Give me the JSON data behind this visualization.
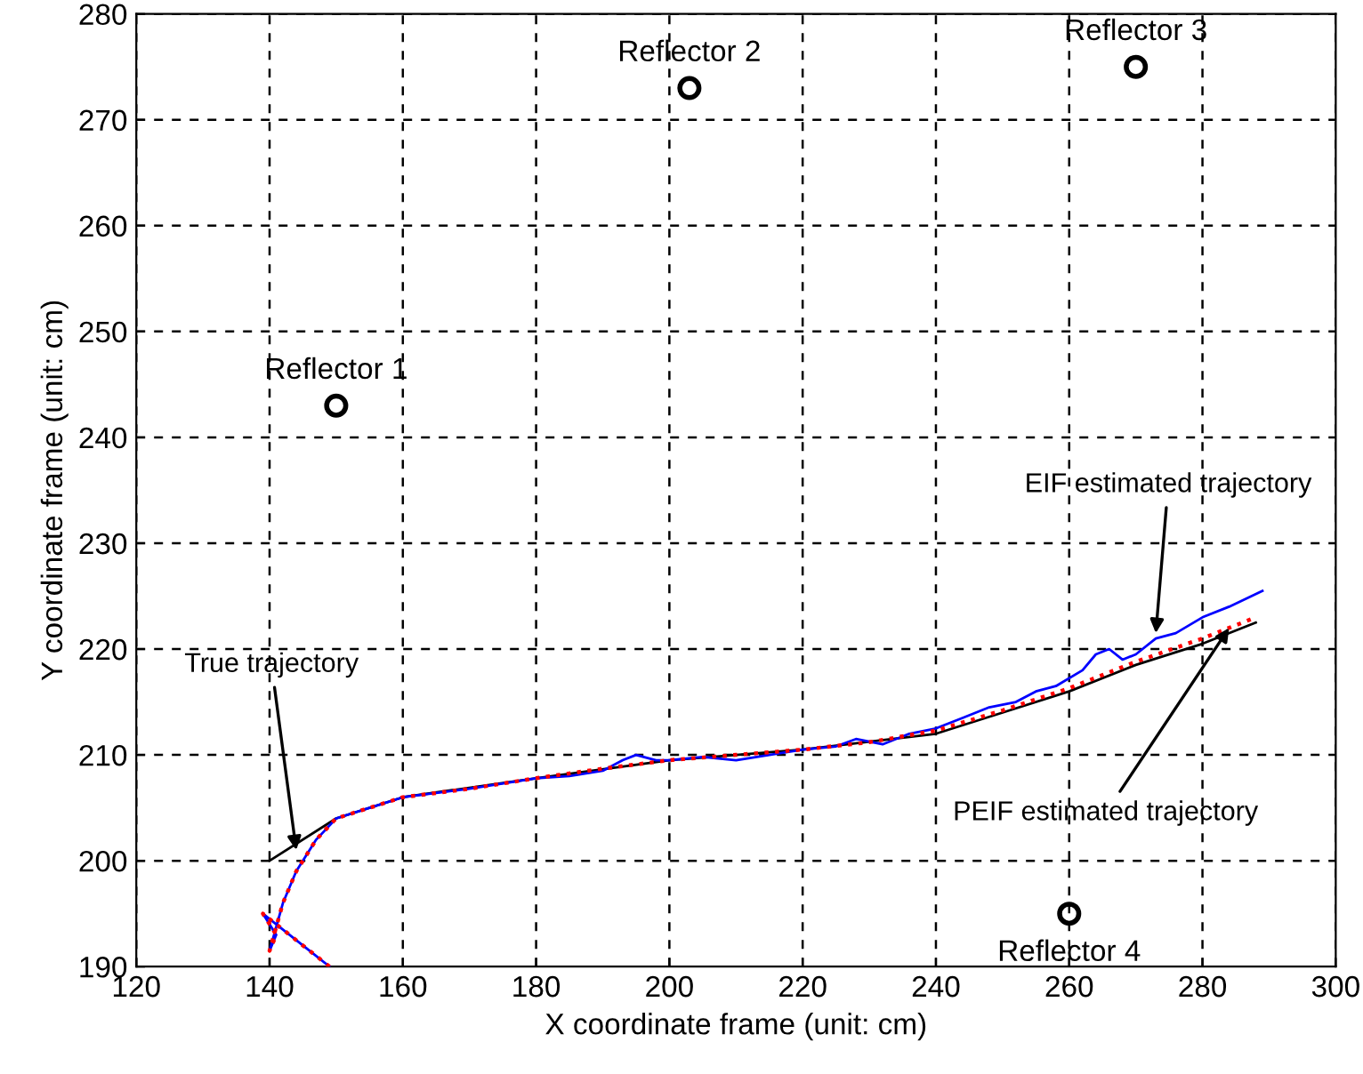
{
  "chart_data": {
    "type": "line",
    "xlabel": "X coordinate frame (unit: cm)",
    "ylabel": "Y coordinate frame (unit: cm)",
    "xlim": [
      120,
      300
    ],
    "ylim": [
      190,
      280
    ],
    "xticks": [
      120,
      140,
      160,
      180,
      200,
      220,
      240,
      260,
      280,
      300
    ],
    "yticks": [
      190,
      200,
      210,
      220,
      230,
      240,
      250,
      260,
      270,
      280
    ],
    "grid": true,
    "series": [
      {
        "color": "#000000",
        "line_style": "solid",
        "x": [
          140,
          150,
          160,
          180,
          200,
          220,
          240,
          250,
          260,
          270,
          280,
          288
        ],
        "values": [
          200,
          204,
          206,
          207.8,
          209.5,
          210.5,
          212,
          214,
          216,
          218.5,
          220.5,
          222.5
        ]
      },
      {
        "color": "#0000ff",
        "line_style": "solid",
        "x": [
          149,
          145,
          141,
          139,
          141,
          140,
          142,
          144,
          147,
          150,
          155,
          160,
          170,
          180,
          185,
          190,
          193,
          195,
          198,
          200,
          205,
          210,
          215,
          220,
          225,
          228,
          232,
          236,
          240,
          244,
          248,
          252,
          255,
          258,
          262,
          264,
          266,
          268,
          270,
          273,
          276,
          280,
          284,
          289
        ],
        "values": [
          190,
          192,
          194,
          195,
          193,
          191.5,
          196,
          199,
          202,
          204,
          205,
          206,
          206.8,
          207.8,
          208,
          208.5,
          209.5,
          210,
          209.5,
          209.5,
          209.8,
          209.5,
          210,
          210.5,
          210.8,
          211.5,
          211,
          212,
          212.5,
          213.5,
          214.5,
          215,
          216,
          216.5,
          218,
          219.5,
          220,
          219,
          219.5,
          221,
          221.5,
          223,
          224,
          225.5
        ]
      },
      {
        "color": "#ff0000",
        "line_style": "dotted",
        "x": [
          149,
          145,
          141,
          139,
          141,
          140,
          142,
          144,
          147,
          150,
          155,
          160,
          170,
          180,
          190,
          200,
          210,
          220,
          230,
          240,
          250,
          260,
          270,
          280,
          288
        ],
        "values": [
          190,
          192,
          194,
          195,
          193,
          191.5,
          196,
          199,
          202,
          204,
          205,
          206,
          206.8,
          207.8,
          208.7,
          209.5,
          210,
          210.5,
          211.2,
          212.3,
          214.2,
          216.3,
          218.8,
          221,
          223
        ]
      },
      {
        "type": "scatter",
        "color": "#000000",
        "marker": "circle",
        "x": [
          150,
          203,
          270,
          260
        ],
        "values": [
          243,
          273,
          275,
          195
        ]
      }
    ],
    "annotations": [
      {
        "text": "Reflector 1",
        "x": 150,
        "y": 243
      },
      {
        "text": "Reflector 2",
        "x": 203,
        "y": 273
      },
      {
        "text": "Reflector 3",
        "x": 270,
        "y": 275
      },
      {
        "text": "Reflector 4",
        "x": 260,
        "y": 195
      },
      {
        "text": "True trajectory",
        "x": 144,
        "y": 201
      },
      {
        "text": "EIF estimated trajectory",
        "x": 273,
        "y": 221.5
      },
      {
        "text": "PEIF estimated trajectory",
        "x": 284,
        "y": 222
      }
    ]
  }
}
